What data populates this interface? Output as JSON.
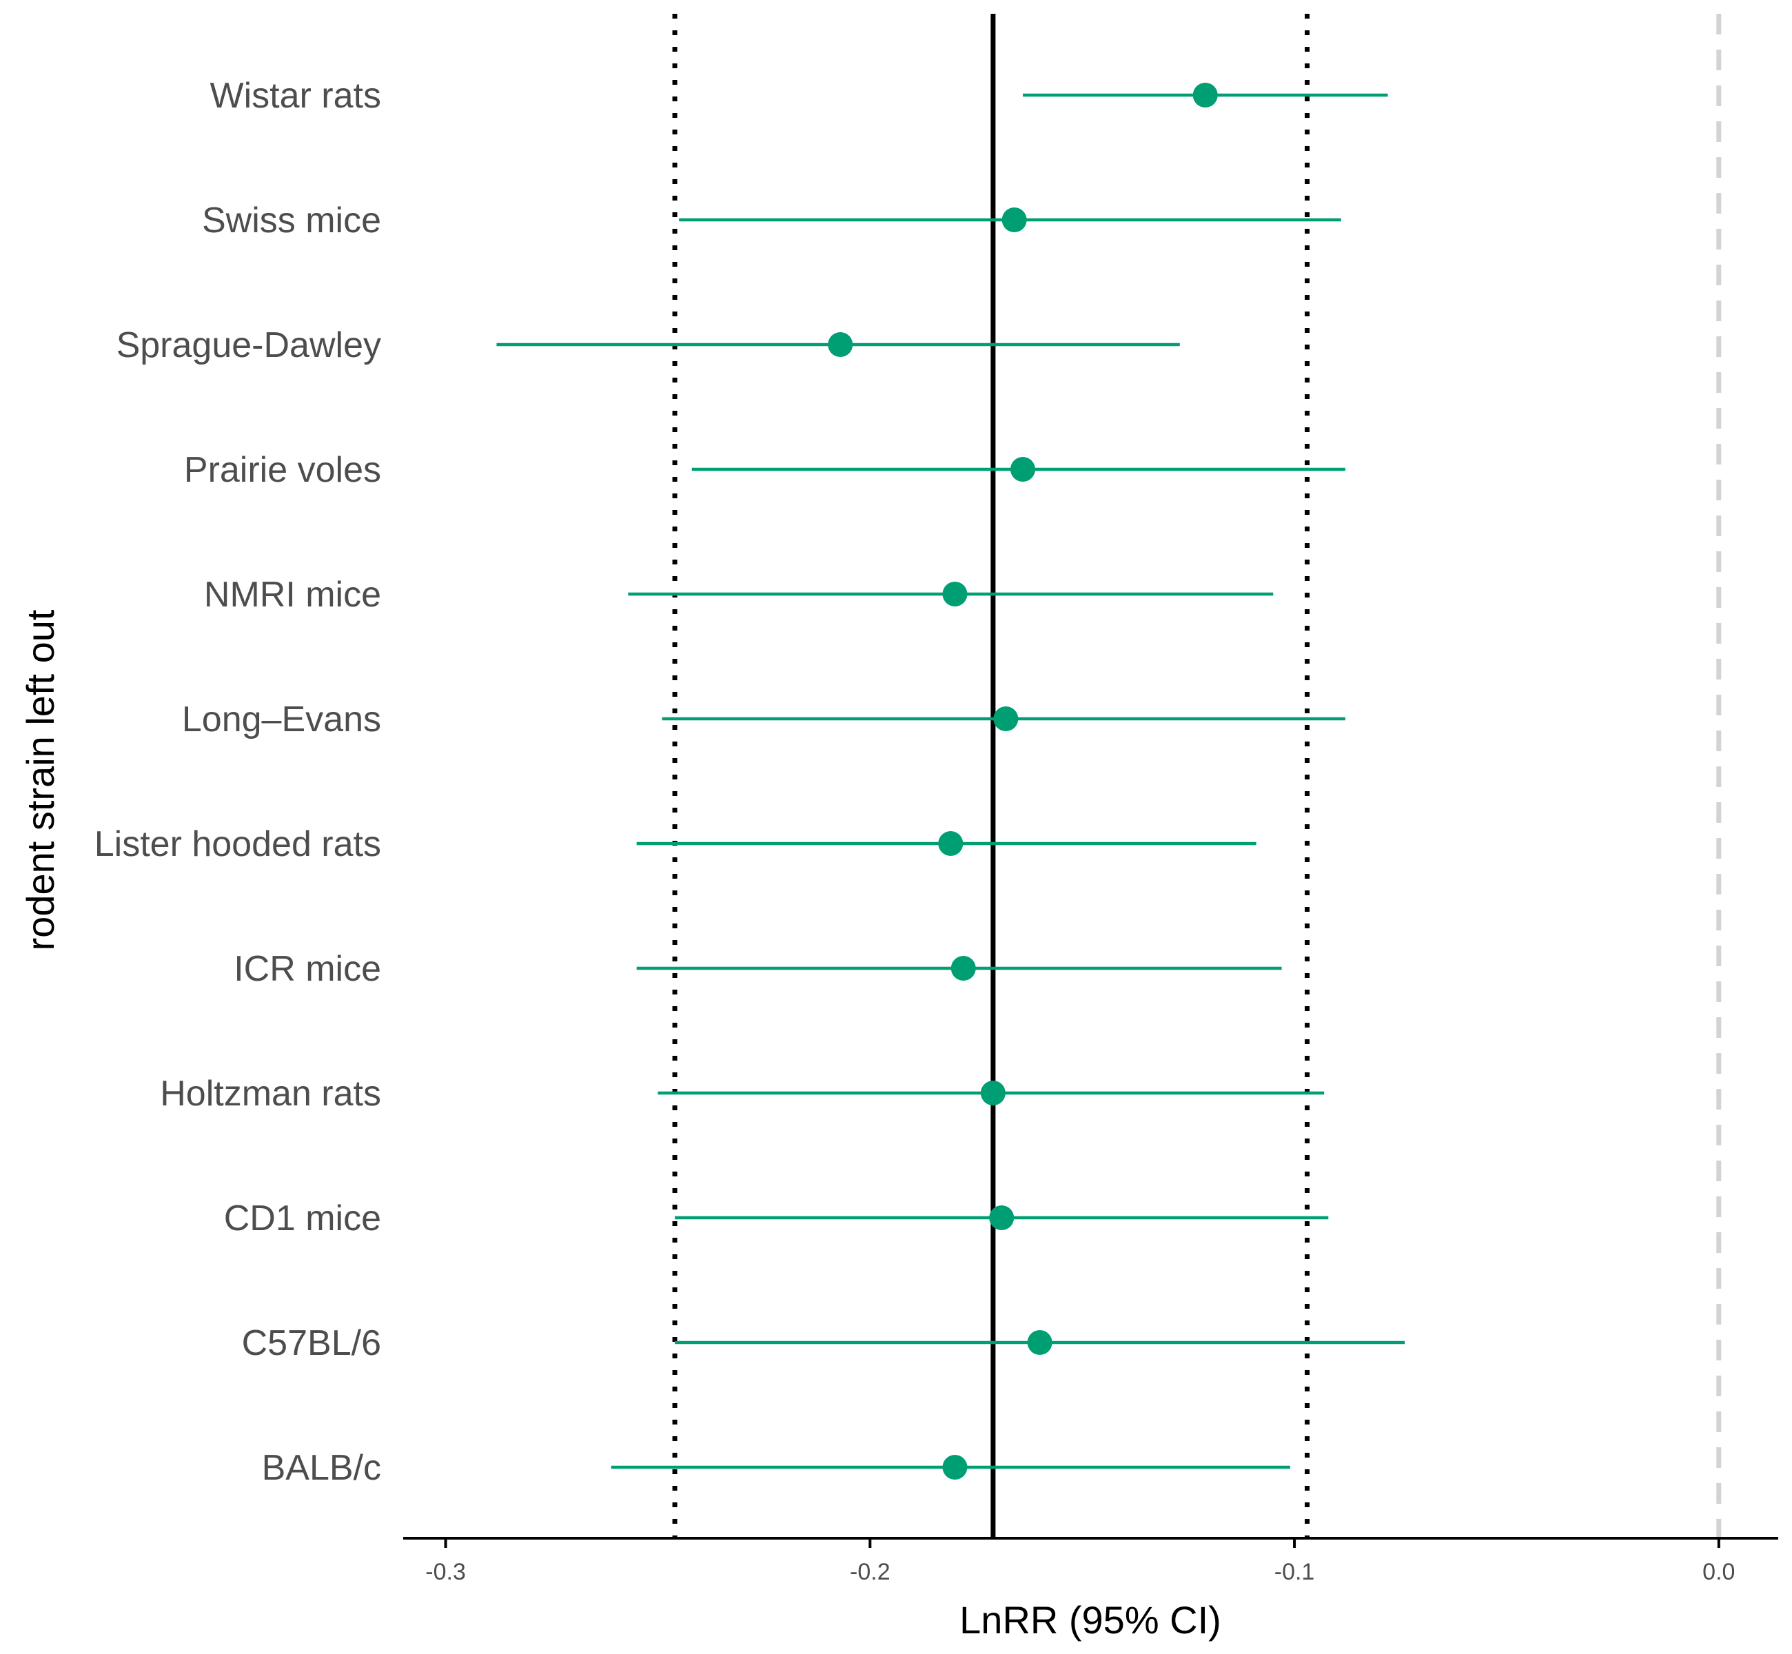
{
  "chart_data": {
    "type": "forest",
    "xlabel": "LnRR (95% CI)",
    "ylabel": "rodent strain left out",
    "xlim": [
      -0.31,
      0.014
    ],
    "x_ticks": [
      -0.3,
      -0.2,
      -0.1,
      0.0
    ],
    "x_tick_labels": [
      "-0.3",
      "-0.2",
      "-0.1",
      "0.0"
    ],
    "grid": false,
    "reference_lines": {
      "overall_estimate": -0.171,
      "overall_ci": [
        -0.246,
        -0.097
      ],
      "null": 0.0
    },
    "colors": {
      "point": "#009E73",
      "overall_line": "#000000",
      "ci_lines": "#000000",
      "null_line": "#D3D3D3",
      "axis": "#000000"
    },
    "categories": [
      "Wistar rats",
      "Swiss mice",
      "Sprague-Dawley",
      "Prairie voles",
      "NMRI mice",
      "Long–Evans",
      "Lister hooded rats",
      "ICR mice",
      "Holtzman rats",
      "CD1 mice",
      "C57BL/6",
      "BALB/c"
    ],
    "estimates": [
      -0.121,
      -0.166,
      -0.207,
      -0.164,
      -0.18,
      -0.168,
      -0.181,
      -0.178,
      -0.171,
      -0.169,
      -0.16,
      -0.18
    ],
    "lower": [
      -0.164,
      -0.245,
      -0.288,
      -0.242,
      -0.257,
      -0.249,
      -0.255,
      -0.255,
      -0.25,
      -0.246,
      -0.246,
      -0.261
    ],
    "upper": [
      -0.078,
      -0.089,
      -0.127,
      -0.088,
      -0.105,
      -0.088,
      -0.109,
      -0.103,
      -0.093,
      -0.092,
      -0.074,
      -0.101
    ]
  }
}
